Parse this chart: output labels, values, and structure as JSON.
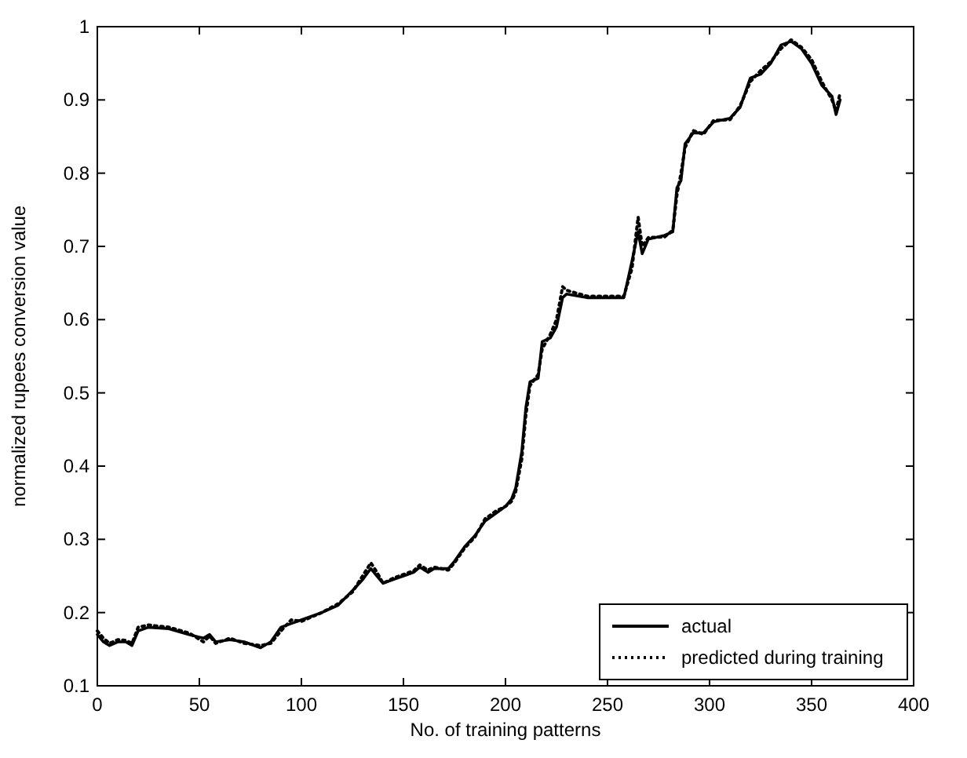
{
  "chart_data": {
    "type": "line",
    "xlabel": "No. of training patterns",
    "ylabel": "normalized rupees conversion value",
    "xlim": [
      0,
      400
    ],
    "ylim": [
      0.1,
      1
    ],
    "xticks": [
      0,
      50,
      100,
      150,
      200,
      250,
      300,
      350,
      400
    ],
    "yticks": [
      0.1,
      0.2,
      0.3,
      0.4,
      0.5,
      0.6,
      0.7,
      0.8,
      0.9,
      1
    ],
    "legend": "bottom right",
    "series": [
      {
        "name": "actual",
        "color": "#000000",
        "line_style": "solid",
        "x": [
          0,
          3,
          6,
          10,
          14,
          17,
          20,
          25,
          35,
          45,
          52,
          55,
          58,
          65,
          72,
          80,
          85,
          90,
          95,
          100,
          110,
          118,
          125,
          130,
          134,
          137,
          140,
          145,
          150,
          155,
          158,
          162,
          165,
          172,
          175,
          180,
          185,
          190,
          195,
          200,
          203,
          205,
          208,
          210,
          212,
          216,
          218,
          222,
          225,
          228,
          230,
          240,
          258,
          262,
          265,
          267,
          270,
          278,
          282,
          284,
          286,
          288,
          292,
          297,
          302,
          310,
          315,
          320,
          325,
          330,
          335,
          340,
          345,
          350,
          355,
          360,
          362,
          364
        ],
        "values": [
          0.17,
          0.16,
          0.155,
          0.16,
          0.16,
          0.155,
          0.175,
          0.18,
          0.178,
          0.17,
          0.165,
          0.17,
          0.16,
          0.163,
          0.16,
          0.152,
          0.16,
          0.18,
          0.185,
          0.19,
          0.2,
          0.21,
          0.23,
          0.245,
          0.26,
          0.25,
          0.24,
          0.245,
          0.25,
          0.255,
          0.262,
          0.255,
          0.26,
          0.26,
          0.27,
          0.29,
          0.305,
          0.325,
          0.335,
          0.345,
          0.355,
          0.37,
          0.42,
          0.48,
          0.515,
          0.52,
          0.57,
          0.575,
          0.59,
          0.63,
          0.635,
          0.63,
          0.63,
          0.68,
          0.72,
          0.69,
          0.71,
          0.715,
          0.72,
          0.78,
          0.79,
          0.84,
          0.855,
          0.855,
          0.87,
          0.875,
          0.89,
          0.93,
          0.935,
          0.95,
          0.975,
          0.98,
          0.97,
          0.95,
          0.92,
          0.905,
          0.88,
          0.9
        ]
      },
      {
        "name": "predicted during training",
        "color": "#000000",
        "line_style": "dotted",
        "x": [
          0,
          3,
          6,
          10,
          14,
          17,
          20,
          25,
          35,
          45,
          52,
          55,
          58,
          65,
          72,
          80,
          85,
          90,
          95,
          100,
          110,
          118,
          125,
          130,
          134,
          137,
          140,
          145,
          150,
          155,
          158,
          162,
          165,
          172,
          175,
          180,
          185,
          190,
          195,
          200,
          203,
          205,
          208,
          210,
          212,
          216,
          218,
          222,
          225,
          228,
          230,
          240,
          258,
          262,
          265,
          267,
          270,
          278,
          282,
          284,
          286,
          288,
          292,
          297,
          302,
          310,
          315,
          320,
          325,
          330,
          335,
          340,
          345,
          350,
          355,
          360,
          362,
          364
        ],
        "values": [
          0.175,
          0.165,
          0.158,
          0.163,
          0.162,
          0.158,
          0.18,
          0.183,
          0.18,
          0.172,
          0.16,
          0.168,
          0.158,
          0.165,
          0.158,
          0.155,
          0.158,
          0.175,
          0.19,
          0.188,
          0.2,
          0.212,
          0.228,
          0.25,
          0.268,
          0.255,
          0.24,
          0.247,
          0.252,
          0.257,
          0.265,
          0.258,
          0.262,
          0.258,
          0.268,
          0.288,
          0.303,
          0.328,
          0.338,
          0.345,
          0.352,
          0.365,
          0.41,
          0.47,
          0.51,
          0.525,
          0.56,
          0.58,
          0.6,
          0.645,
          0.64,
          0.632,
          0.632,
          0.67,
          0.74,
          0.7,
          0.712,
          0.713,
          0.722,
          0.77,
          0.8,
          0.835,
          0.858,
          0.853,
          0.872,
          0.873,
          0.892,
          0.925,
          0.94,
          0.952,
          0.97,
          0.982,
          0.972,
          0.955,
          0.925,
          0.9,
          0.885,
          0.91
        ]
      }
    ]
  }
}
